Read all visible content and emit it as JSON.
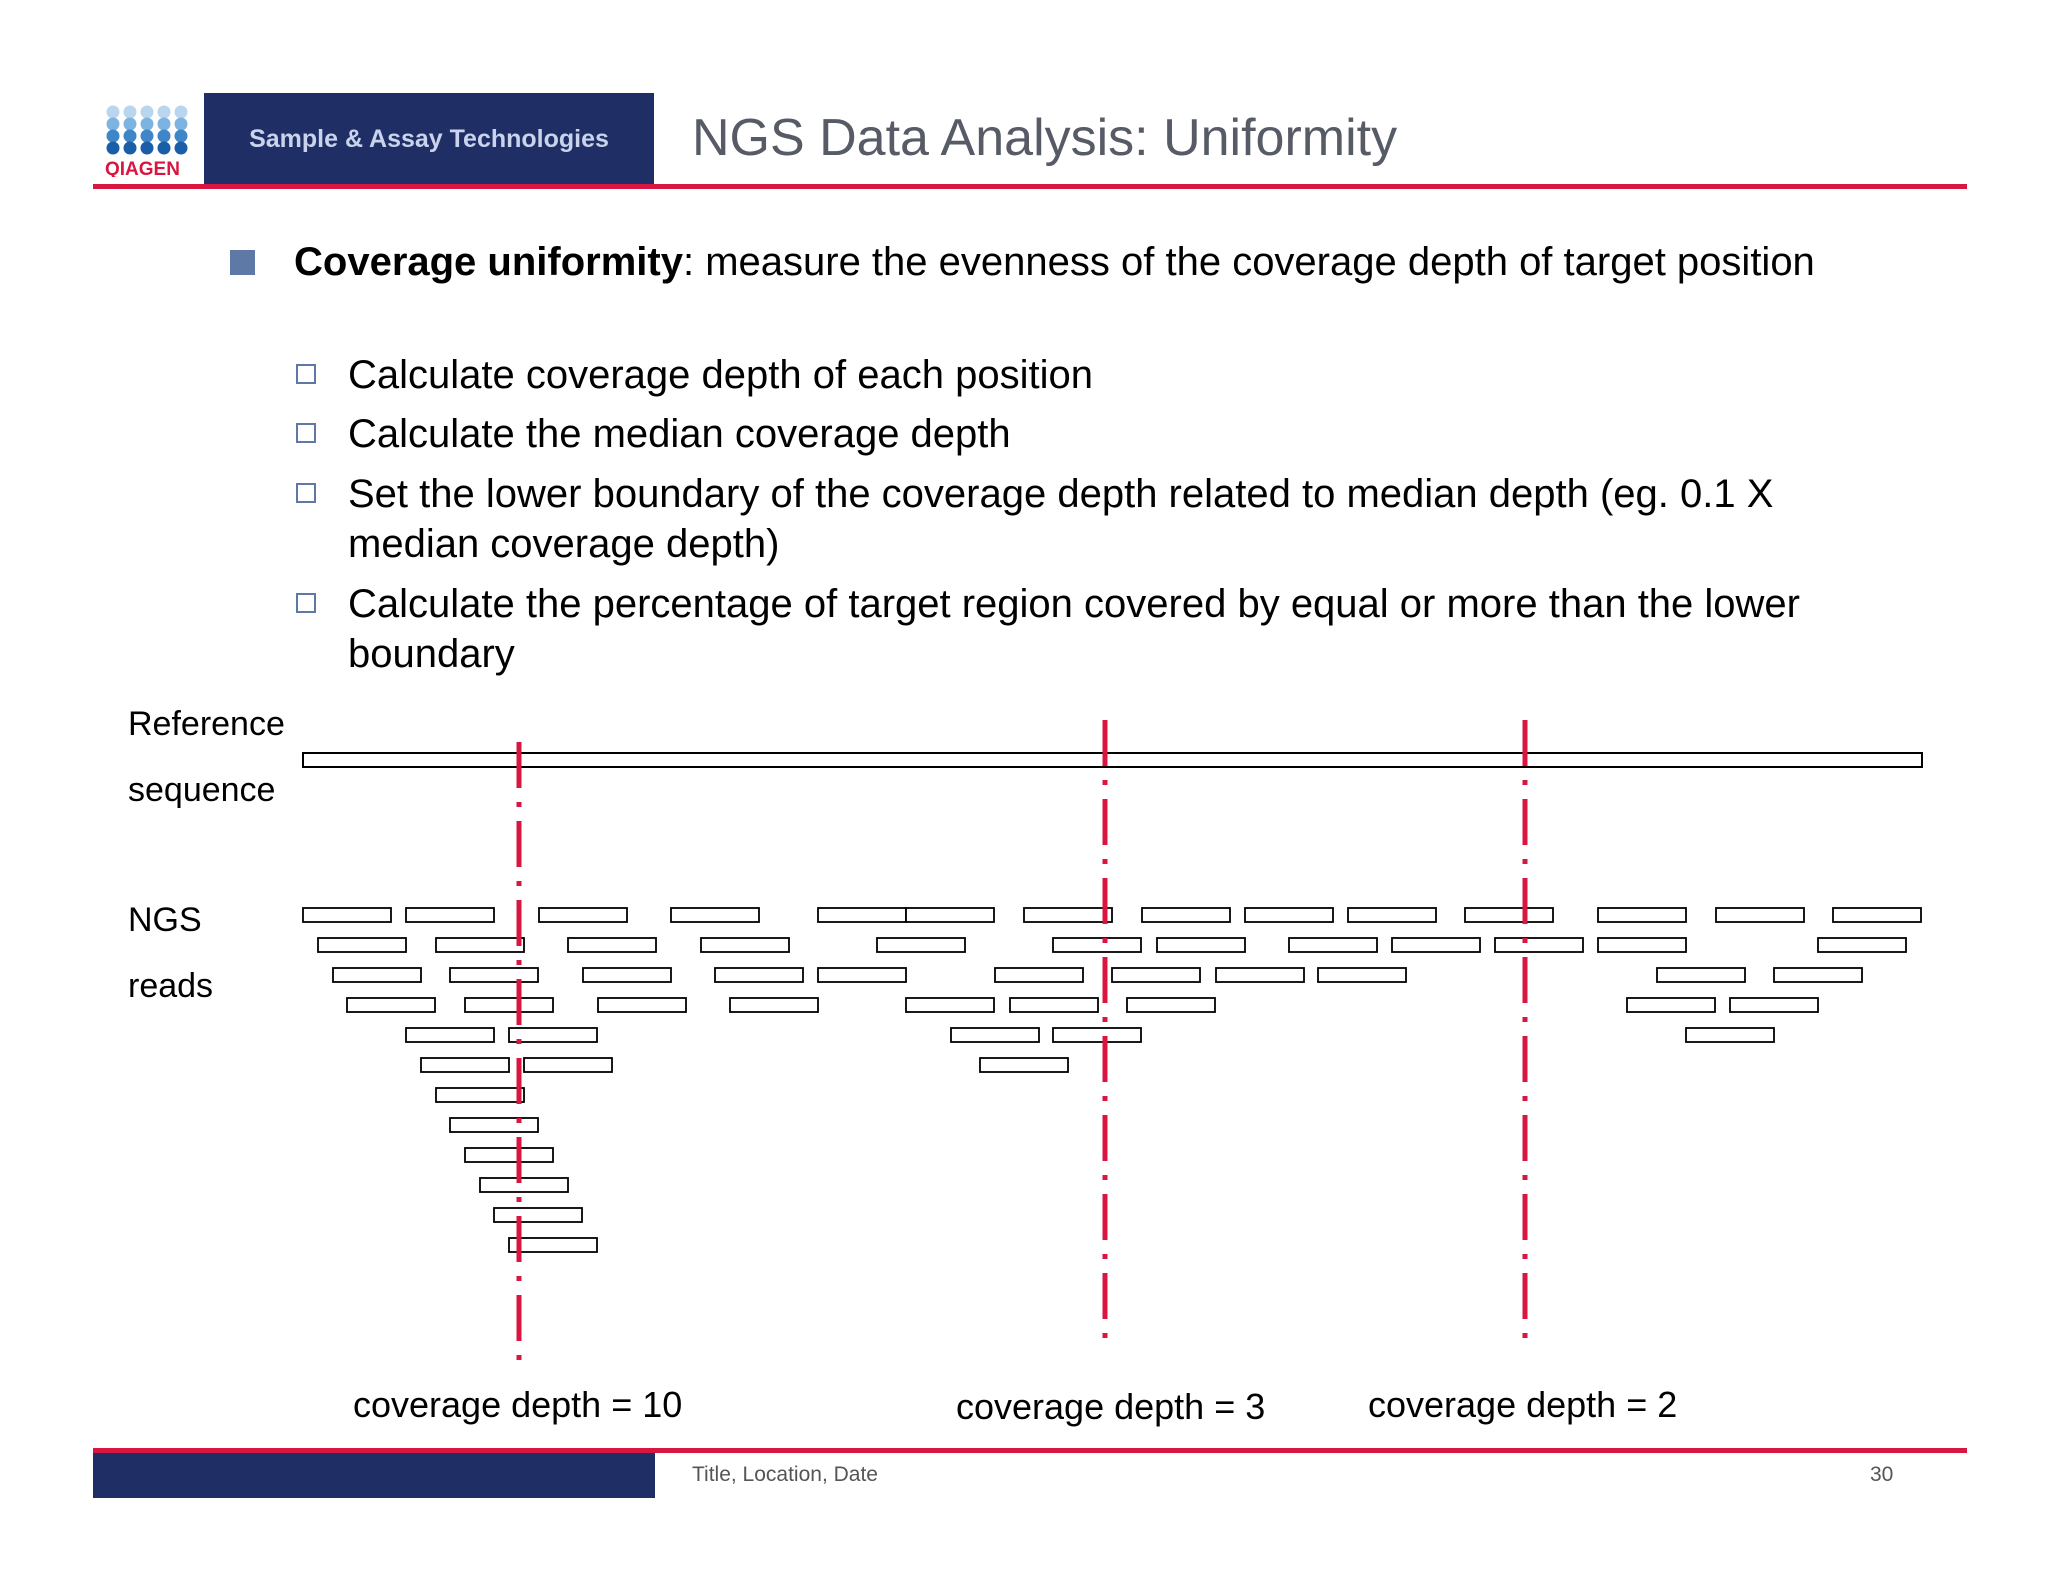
{
  "header": {
    "logo_text": "QIAGEN",
    "brand_tagline": "Sample & Assay Technologies",
    "title": "NGS Data Analysis: Uniformity"
  },
  "content": {
    "main_bullet_bold": "Coverage uniformity",
    "main_bullet_rest": ": measure the evenness of the coverage depth of target position",
    "sub_bullets": [
      "Calculate coverage depth of each position",
      "Calculate the median coverage depth",
      "Set the lower boundary of the coverage depth related to median depth (eg. 0.1 X median coverage depth)",
      "Calculate the percentage of target region covered by equal or more than the lower boundary"
    ]
  },
  "diagram": {
    "reference_label_line1": "Reference",
    "reference_label_line2": "sequence",
    "reads_label_line1": "NGS",
    "reads_label_line2": "reads",
    "depth_labels": [
      "coverage depth = 10",
      "coverage depth = 3",
      "coverage depth = 2"
    ],
    "depths": [
      10,
      3,
      2
    ],
    "colors": {
      "marker": "#d9163f",
      "bar": "#1f2f66",
      "bullet": "#5f79a6"
    }
  },
  "footer": {
    "text": "Title, Location, Date",
    "page_number": "30"
  }
}
